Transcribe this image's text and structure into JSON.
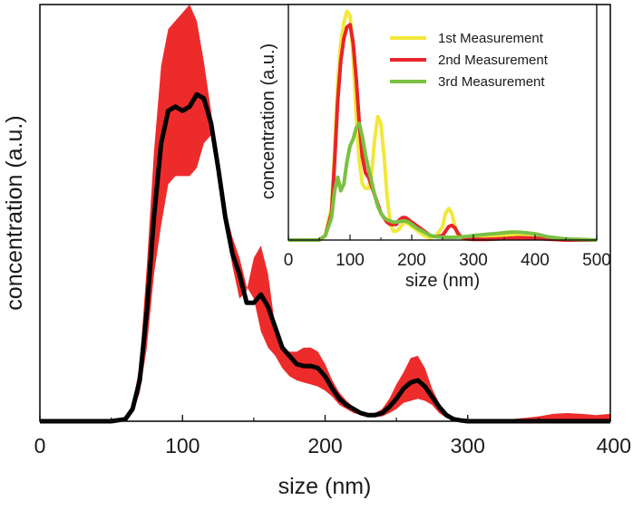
{
  "chart_data": [
    {
      "type": "area",
      "xlabel": "size (nm)",
      "ylabel": "concentration (a.u.)",
      "xlim": [
        0,
        400
      ],
      "ylim": [
        0,
        1.02
      ],
      "xticks": [
        0,
        100,
        200,
        300,
        400
      ],
      "x_tick_labels": [
        "0",
        "100",
        "200",
        "300",
        "400"
      ],
      "grid": false,
      "colors": {
        "band": "#ee2b2b",
        "mean": "#000000"
      },
      "x": [
        50,
        60,
        65,
        70,
        75,
        80,
        85,
        90,
        95,
        100,
        105,
        110,
        115,
        120,
        125,
        130,
        135,
        140,
        145,
        150,
        155,
        160,
        165,
        170,
        175,
        180,
        185,
        190,
        195,
        200,
        205,
        210,
        215,
        220,
        225,
        230,
        235,
        240,
        245,
        250,
        255,
        260,
        265,
        270,
        275,
        280,
        285,
        290,
        295,
        300,
        310,
        320,
        330,
        340,
        350,
        360,
        370,
        380,
        390,
        400
      ],
      "series": [
        {
          "role": "mean",
          "values": [
            0,
            0.005,
            0.03,
            0.1,
            0.27,
            0.5,
            0.68,
            0.76,
            0.77,
            0.76,
            0.77,
            0.8,
            0.79,
            0.73,
            0.62,
            0.5,
            0.41,
            0.36,
            0.29,
            0.29,
            0.31,
            0.28,
            0.23,
            0.18,
            0.16,
            0.14,
            0.135,
            0.135,
            0.13,
            0.11,
            0.08,
            0.055,
            0.04,
            0.03,
            0.02,
            0.015,
            0.015,
            0.02,
            0.035,
            0.055,
            0.08,
            0.095,
            0.1,
            0.085,
            0.06,
            0.035,
            0.015,
            0.005,
            0.002,
            0,
            0,
            0,
            0,
            0,
            0,
            0,
            0,
            0,
            0,
            0
          ]
        },
        {
          "role": "band-upper",
          "values": [
            0,
            0.01,
            0.04,
            0.14,
            0.38,
            0.66,
            0.87,
            0.96,
            0.98,
            1.0,
            1.02,
            0.98,
            0.88,
            0.76,
            0.62,
            0.48,
            0.38,
            0.3,
            0.32,
            0.4,
            0.43,
            0.36,
            0.23,
            0.18,
            0.17,
            0.17,
            0.18,
            0.18,
            0.17,
            0.14,
            0.1,
            0.07,
            0.05,
            0.035,
            0.025,
            0.02,
            0.02,
            0.03,
            0.055,
            0.09,
            0.12,
            0.155,
            0.16,
            0.13,
            0.08,
            0.045,
            0.02,
            0.008,
            0.004,
            0.002,
            0.002,
            0.003,
            0.005,
            0.008,
            0.012,
            0.018,
            0.02,
            0.018,
            0.015,
            0.018
          ]
        },
        {
          "role": "band-lower",
          "values": [
            0,
            0,
            0.02,
            0.07,
            0.18,
            0.36,
            0.48,
            0.58,
            0.6,
            0.6,
            0.6,
            0.62,
            0.68,
            0.7,
            0.62,
            0.52,
            0.45,
            0.4,
            0.33,
            0.3,
            0.22,
            0.18,
            0.16,
            0.13,
            0.11,
            0.1,
            0.095,
            0.09,
            0.085,
            0.075,
            0.06,
            0.04,
            0.03,
            0.02,
            0.015,
            0.01,
            0.01,
            0.012,
            0.02,
            0.03,
            0.045,
            0.05,
            0.055,
            0.05,
            0.04,
            0.02,
            0.008,
            0.002,
            0,
            0,
            0,
            0,
            0,
            0,
            0,
            0,
            0,
            0,
            0,
            0
          ]
        }
      ]
    },
    {
      "type": "line",
      "xlabel": "size (nm)",
      "ylabel": "concentration (a.u.)",
      "xlim": [
        0,
        500
      ],
      "ylim": [
        0,
        1.05
      ],
      "xticks": [
        0,
        100,
        200,
        300,
        400,
        500
      ],
      "x_tick_labels": [
        "0",
        "100",
        "200",
        "300",
        "400",
        "500"
      ],
      "grid": false,
      "legend": "top-right",
      "x": [
        50,
        60,
        70,
        75,
        80,
        85,
        90,
        95,
        100,
        105,
        110,
        115,
        120,
        125,
        130,
        135,
        140,
        145,
        150,
        155,
        160,
        165,
        170,
        175,
        180,
        185,
        190,
        195,
        200,
        210,
        220,
        230,
        240,
        250,
        255,
        260,
        265,
        270,
        275,
        280,
        290,
        300,
        320,
        340,
        360,
        370,
        380,
        400,
        420,
        450,
        500
      ],
      "series": [
        {
          "name": "1st Measurement",
          "color": "#f2e83a",
          "values": [
            0,
            0.02,
            0.15,
            0.4,
            0.7,
            0.88,
            0.97,
            1.02,
            1.0,
            0.82,
            0.55,
            0.35,
            0.25,
            0.23,
            0.23,
            0.3,
            0.45,
            0.55,
            0.52,
            0.38,
            0.2,
            0.08,
            0.04,
            0.04,
            0.05,
            0.07,
            0.08,
            0.07,
            0.06,
            0.04,
            0.02,
            0.01,
            0.02,
            0.06,
            0.12,
            0.14,
            0.12,
            0.06,
            0.02,
            0.01,
            0.005,
            0.005,
            0.01,
            0.015,
            0.02,
            0.02,
            0.018,
            0.01,
            0.005,
            0,
            0
          ]
        },
        {
          "name": "2nd Measurement",
          "color": "#e8242a",
          "values": [
            0,
            0.02,
            0.12,
            0.35,
            0.62,
            0.8,
            0.9,
            0.95,
            0.96,
            0.88,
            0.72,
            0.52,
            0.37,
            0.3,
            0.28,
            0.24,
            0.2,
            0.16,
            0.12,
            0.1,
            0.08,
            0.07,
            0.07,
            0.07,
            0.09,
            0.1,
            0.1,
            0.09,
            0.08,
            0.06,
            0.04,
            0.02,
            0.015,
            0.02,
            0.04,
            0.06,
            0.065,
            0.055,
            0.03,
            0.015,
            0.005,
            0.003,
            0.003,
            0.005,
            0.008,
            0.01,
            0.01,
            0.008,
            0.004,
            0,
            0
          ]
        },
        {
          "name": "3rd Measurement",
          "color": "#7bc043",
          "values": [
            0,
            0.02,
            0.1,
            0.22,
            0.28,
            0.22,
            0.25,
            0.35,
            0.42,
            0.45,
            0.5,
            0.52,
            0.46,
            0.38,
            0.32,
            0.26,
            0.2,
            0.15,
            0.12,
            0.1,
            0.09,
            0.085,
            0.08,
            0.08,
            0.082,
            0.085,
            0.085,
            0.08,
            0.07,
            0.05,
            0.035,
            0.02,
            0.015,
            0.012,
            0.012,
            0.012,
            0.012,
            0.012,
            0.013,
            0.014,
            0.016,
            0.02,
            0.025,
            0.03,
            0.035,
            0.035,
            0.034,
            0.028,
            0.015,
            0.005,
            0
          ]
        }
      ]
    }
  ]
}
